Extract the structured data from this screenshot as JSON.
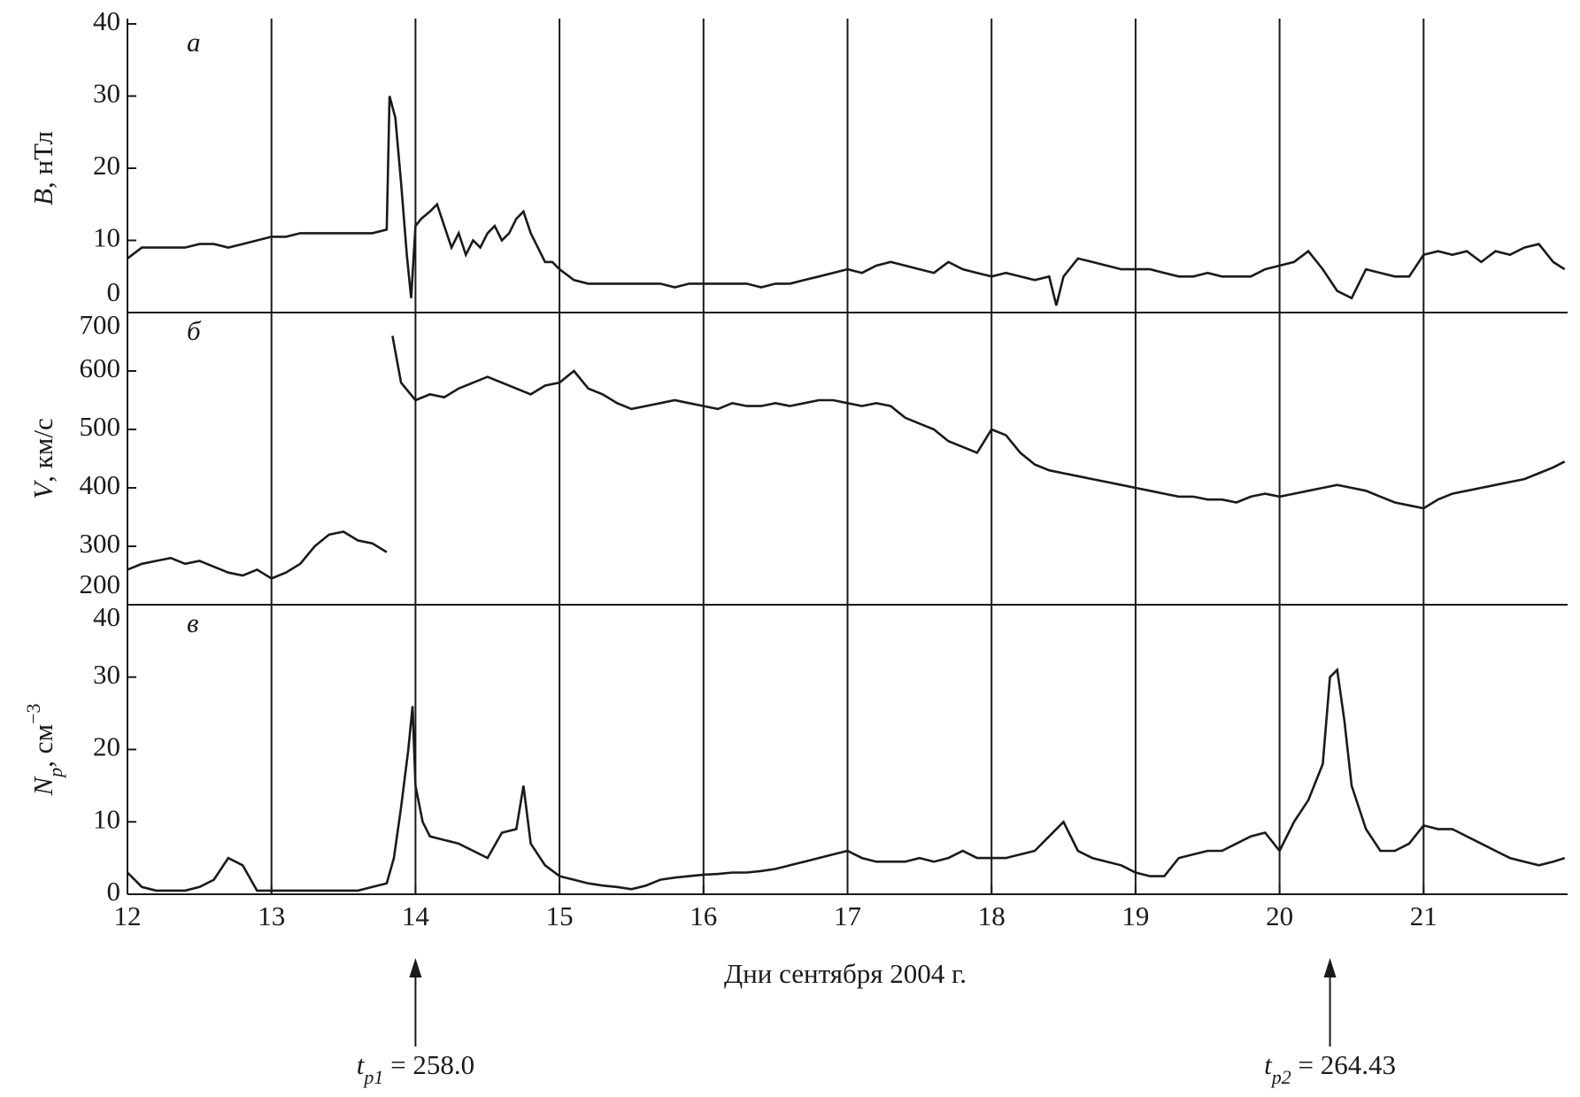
{
  "chart_data": [
    {
      "type": "line",
      "panel_label": "а",
      "color": "#1a1a1a",
      "ylabel": [
        {
          "text": "B",
          "style": "italic"
        },
        {
          "text": ", нТл",
          "style": "normal"
        }
      ],
      "xlim": [
        12,
        22
      ],
      "ylim": [
        0,
        40
      ],
      "yticks": [
        0,
        10,
        20,
        30,
        40
      ],
      "x": [
        12.0,
        12.1,
        12.2,
        12.3,
        12.4,
        12.5,
        12.6,
        12.7,
        12.8,
        12.9,
        13.0,
        13.1,
        13.2,
        13.3,
        13.4,
        13.5,
        13.6,
        13.7,
        13.8,
        13.82,
        13.86,
        13.9,
        13.94,
        13.97,
        14.0,
        14.04,
        14.1,
        14.15,
        14.2,
        14.25,
        14.3,
        14.35,
        14.4,
        14.45,
        14.5,
        14.55,
        14.6,
        14.65,
        14.7,
        14.75,
        14.8,
        14.85,
        14.9,
        14.95,
        15.0,
        15.1,
        15.2,
        15.3,
        15.4,
        15.5,
        15.6,
        15.7,
        15.8,
        15.9,
        16.0,
        16.1,
        16.2,
        16.3,
        16.4,
        16.5,
        16.6,
        16.7,
        16.8,
        16.9,
        17.0,
        17.1,
        17.2,
        17.3,
        17.4,
        17.5,
        17.6,
        17.7,
        17.8,
        17.9,
        18.0,
        18.1,
        18.2,
        18.3,
        18.4,
        18.45,
        18.5,
        18.6,
        18.7,
        18.8,
        18.9,
        19.0,
        19.1,
        19.2,
        19.3,
        19.4,
        19.5,
        19.6,
        19.7,
        19.8,
        19.9,
        20.0,
        20.1,
        20.2,
        20.3,
        20.4,
        20.5,
        20.6,
        20.7,
        20.8,
        20.9,
        21.0,
        21.1,
        21.2,
        21.3,
        21.4,
        21.5,
        21.6,
        21.7,
        21.8,
        21.9,
        21.98
      ],
      "values": [
        7.5,
        9,
        9,
        9,
        9,
        9.5,
        9.5,
        9,
        9.5,
        10,
        10.5,
        10.5,
        11,
        11,
        11,
        11,
        11,
        11,
        11.5,
        30,
        27,
        18,
        8,
        2,
        12,
        13,
        14,
        15,
        12,
        9,
        11,
        8,
        10,
        9,
        11,
        12,
        10,
        11,
        13,
        14,
        11,
        9,
        7,
        7,
        6,
        4.5,
        4,
        4,
        4,
        4,
        4,
        4,
        3.5,
        4,
        4,
        4,
        4,
        4,
        3.5,
        4,
        4,
        4.5,
        5,
        5.5,
        6,
        5.5,
        6.5,
        7,
        6.5,
        6,
        5.5,
        7,
        6,
        5.5,
        5,
        5.5,
        5,
        4.5,
        5,
        1,
        5,
        7.5,
        7,
        6.5,
        6,
        6,
        6,
        5.5,
        5,
        5,
        5.5,
        5,
        5,
        5,
        6,
        6.5,
        7,
        8.5,
        6,
        3,
        2,
        6,
        5.5,
        5,
        5,
        8,
        8.5,
        8,
        8.5,
        7,
        8.5,
        8,
        9,
        9.5,
        7,
        6
      ]
    },
    {
      "type": "line",
      "panel_label": "б",
      "color": "#1a1a1a",
      "ylabel": [
        {
          "text": "V",
          "style": "italic"
        },
        {
          "text": ", км/с",
          "style": "normal"
        }
      ],
      "xlim": [
        12,
        22
      ],
      "ylim": [
        200,
        700
      ],
      "yticks": [
        200,
        300,
        400,
        500,
        600,
        700
      ],
      "x": [
        12.0,
        12.1,
        12.2,
        12.3,
        12.4,
        12.5,
        12.6,
        12.7,
        12.8,
        12.9,
        13.0,
        13.1,
        13.2,
        13.3,
        13.4,
        13.5,
        13.6,
        13.7,
        13.8,
        13.82,
        13.84,
        13.9,
        14.0,
        14.1,
        14.2,
        14.3,
        14.4,
        14.5,
        14.6,
        14.7,
        14.8,
        14.9,
        15.0,
        15.1,
        15.2,
        15.3,
        15.4,
        15.5,
        15.6,
        15.7,
        15.8,
        15.9,
        16.0,
        16.1,
        16.2,
        16.3,
        16.4,
        16.5,
        16.6,
        16.7,
        16.8,
        16.9,
        17.0,
        17.1,
        17.2,
        17.3,
        17.4,
        17.5,
        17.6,
        17.7,
        17.8,
        17.9,
        18.0,
        18.1,
        18.2,
        18.3,
        18.4,
        18.5,
        18.6,
        18.7,
        18.8,
        18.9,
        19.0,
        19.1,
        19.2,
        19.3,
        19.4,
        19.5,
        19.6,
        19.7,
        19.8,
        19.9,
        20.0,
        20.1,
        20.2,
        20.3,
        20.4,
        20.5,
        20.6,
        20.7,
        20.8,
        20.9,
        21.0,
        21.1,
        21.2,
        21.3,
        21.4,
        21.5,
        21.6,
        21.7,
        21.8,
        21.9,
        21.98
      ],
      "values": [
        260,
        270,
        275,
        280,
        270,
        275,
        265,
        255,
        250,
        260,
        245,
        255,
        270,
        300,
        320,
        325,
        310,
        305,
        290,
        null,
        660,
        580,
        550,
        560,
        555,
        570,
        580,
        590,
        580,
        570,
        560,
        575,
        580,
        600,
        570,
        560,
        545,
        535,
        540,
        545,
        550,
        545,
        540,
        535,
        545,
        540,
        540,
        545,
        540,
        545,
        550,
        550,
        545,
        540,
        545,
        540,
        520,
        510,
        500,
        480,
        470,
        460,
        500,
        490,
        460,
        440,
        430,
        425,
        420,
        415,
        410,
        405,
        400,
        395,
        390,
        385,
        385,
        380,
        380,
        375,
        385,
        390,
        385,
        390,
        395,
        400,
        405,
        400,
        395,
        385,
        375,
        370,
        365,
        380,
        390,
        395,
        400,
        405,
        410,
        415,
        425,
        435,
        445
      ]
    },
    {
      "type": "line",
      "panel_label": "в",
      "color": "#1a1a1a",
      "ylabel": [
        {
          "text": "N",
          "style": "italic"
        },
        {
          "text": "p",
          "style": "sub"
        },
        {
          "text": ", см",
          "style": "normal"
        },
        {
          "text": "−3",
          "style": "sup"
        }
      ],
      "xlabel": "Дни сентября 2004 г.",
      "xlim": [
        12,
        22
      ],
      "xticks": [
        12,
        13,
        14,
        15,
        16,
        17,
        18,
        19,
        20,
        21
      ],
      "grid": true,
      "ylim": [
        0,
        40
      ],
      "yticks": [
        0,
        10,
        20,
        30,
        40
      ],
      "x": [
        12.0,
        12.1,
        12.2,
        12.3,
        12.4,
        12.5,
        12.6,
        12.7,
        12.8,
        12.9,
        13.0,
        13.1,
        13.2,
        13.3,
        13.4,
        13.5,
        13.6,
        13.7,
        13.8,
        13.85,
        13.9,
        13.95,
        13.98,
        14.0,
        14.05,
        14.1,
        14.2,
        14.3,
        14.4,
        14.5,
        14.6,
        14.7,
        14.75,
        14.8,
        14.9,
        15.0,
        15.1,
        15.2,
        15.3,
        15.4,
        15.5,
        15.6,
        15.7,
        15.8,
        15.9,
        16.0,
        16.1,
        16.2,
        16.3,
        16.4,
        16.5,
        16.6,
        16.7,
        16.8,
        16.9,
        17.0,
        17.1,
        17.2,
        17.3,
        17.4,
        17.5,
        17.6,
        17.7,
        17.8,
        17.9,
        18.0,
        18.1,
        18.2,
        18.3,
        18.4,
        18.5,
        18.6,
        18.7,
        18.8,
        18.9,
        19.0,
        19.1,
        19.2,
        19.3,
        19.4,
        19.5,
        19.6,
        19.7,
        19.8,
        19.9,
        20.0,
        20.1,
        20.2,
        20.3,
        20.35,
        20.4,
        20.45,
        20.5,
        20.6,
        20.7,
        20.8,
        20.9,
        21.0,
        21.1,
        21.2,
        21.3,
        21.4,
        21.5,
        21.6,
        21.7,
        21.8,
        21.9,
        21.98
      ],
      "values": [
        3,
        1,
        0.5,
        0.5,
        0.5,
        1,
        2,
        5,
        4,
        0.5,
        0.5,
        0.5,
        0.5,
        0.5,
        0.5,
        0.5,
        0.5,
        1,
        1.5,
        5,
        12,
        20,
        26,
        15,
        10,
        8,
        7.5,
        7,
        6,
        5,
        8.5,
        9,
        15,
        7,
        4,
        2.5,
        2,
        1.5,
        1.2,
        1,
        0.7,
        1.2,
        2,
        2.3,
        2.5,
        2.7,
        2.8,
        3,
        3,
        3.2,
        3.5,
        4,
        4.5,
        5,
        5.5,
        6,
        5,
        4.5,
        4.5,
        4.5,
        5,
        4.5,
        5,
        6,
        5,
        5,
        5,
        5.5,
        6,
        8,
        10,
        6,
        5,
        4.5,
        4,
        3,
        2.5,
        2.5,
        5,
        5.5,
        6,
        6,
        7,
        8,
        8.5,
        6,
        10,
        13,
        18,
        30,
        31,
        24,
        15,
        9,
        6,
        6,
        7,
        9.5,
        9,
        9,
        8,
        7,
        6,
        5,
        4.5,
        4,
        4.5,
        5
      ],
      "annotations": [
        {
          "x": 14,
          "text": [
            {
              "text": "t",
              "style": "italic"
            },
            {
              "text": "p1",
              "style": "sub"
            },
            {
              "text": " = 258.0",
              "style": "normal"
            }
          ]
        },
        {
          "x": 20.35,
          "text": [
            {
              "text": "t",
              "style": "italic"
            },
            {
              "text": "p2",
              "style": "sub"
            },
            {
              "text": " = 264.43",
              "style": "normal"
            }
          ]
        }
      ]
    }
  ]
}
